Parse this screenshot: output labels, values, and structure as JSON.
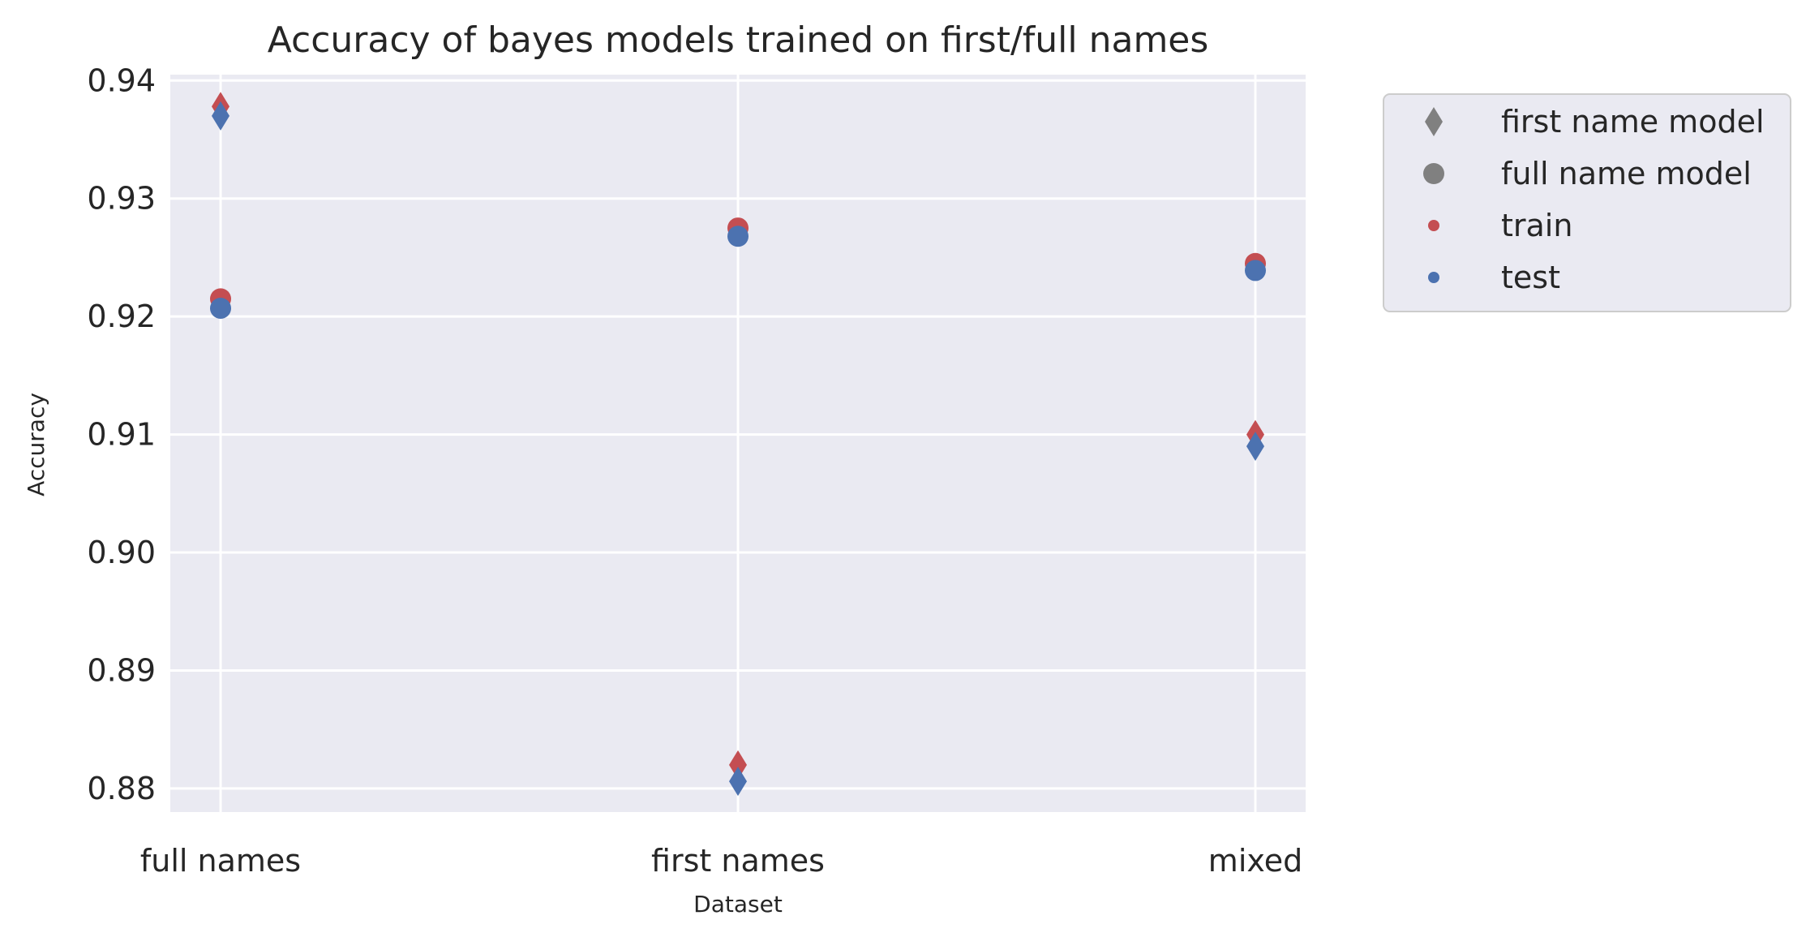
{
  "chart_data": {
    "type": "scatter",
    "title": "Accuracy of bayes models trained on first/full names",
    "xlabel": "Dataset",
    "ylabel": "Accuracy",
    "categories": [
      "full names",
      "first names",
      "mixed"
    ],
    "ylim": [
      0.878,
      0.9405
    ],
    "yticks": [
      0.88,
      0.89,
      0.9,
      0.91,
      0.92,
      0.93,
      0.94
    ],
    "ytick_labels": [
      "0.88",
      "0.89",
      "0.90",
      "0.91",
      "0.92",
      "0.93",
      "0.94"
    ],
    "grid": true,
    "legend_position": "outside-top-right",
    "colors": {
      "train": "#c44e52",
      "test": "#4c72b0",
      "legend_marker": "#808080",
      "plot_bg": "#eaeaf2",
      "grid": "#ffffff"
    },
    "series": [
      {
        "model": "first name model",
        "split": "train",
        "marker": "diamond",
        "values": [
          0.9378,
          0.882,
          0.91
        ]
      },
      {
        "model": "first name model",
        "split": "test",
        "marker": "diamond",
        "values": [
          0.937,
          0.8806,
          0.909
        ]
      },
      {
        "model": "full name model",
        "split": "train",
        "marker": "circle",
        "values": [
          0.9215,
          0.9275,
          0.9245
        ]
      },
      {
        "model": "full name model",
        "split": "test",
        "marker": "circle",
        "values": [
          0.9207,
          0.9268,
          0.9239
        ]
      }
    ],
    "legend": [
      {
        "label": "first name model",
        "marker": "diamond",
        "color": "#808080"
      },
      {
        "label": "full name model",
        "marker": "circle",
        "color": "#808080"
      },
      {
        "label": "train",
        "marker": "dot",
        "color": "#c44e52"
      },
      {
        "label": "test",
        "marker": "dot",
        "color": "#4c72b0"
      }
    ]
  }
}
